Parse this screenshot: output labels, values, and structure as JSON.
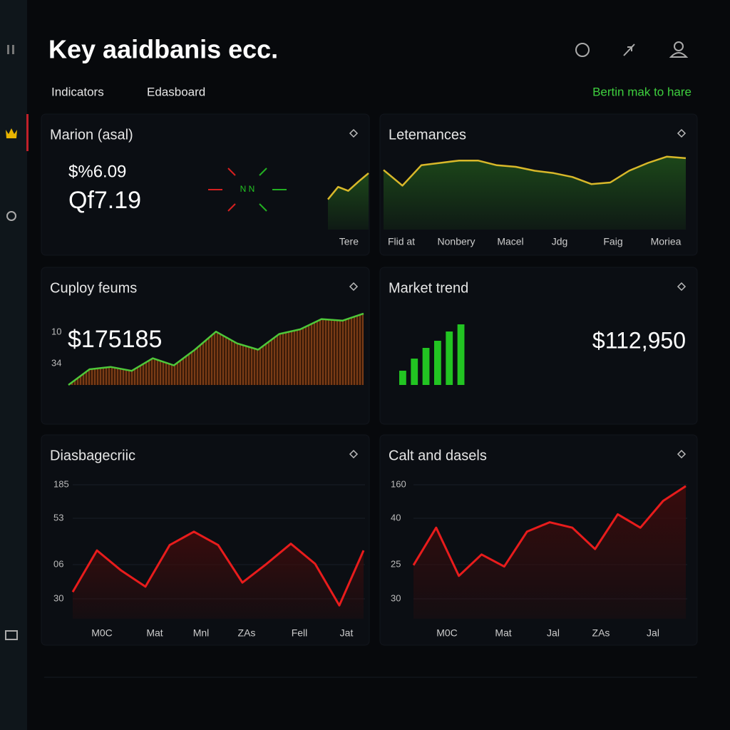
{
  "header": {
    "title": "Key aaidbanis ecc.",
    "tabs": [
      "Indicators",
      "Edasboard"
    ],
    "action": "Bertin mak to hare"
  },
  "panels": [
    {
      "title": "Marion (asal)",
      "figures": [
        "$%6.09",
        "Qf7.19"
      ],
      "indicator": "N N",
      "chart": {
        "type": "area",
        "color": "#d8b82a",
        "fill_color": "#1d4a1a",
        "ylim": [
          0,
          100
        ],
        "values": [
          46,
          65,
          59,
          73,
          86
        ],
        "x_labels": [
          "Tere"
        ]
      }
    },
    {
      "title": "Letemances",
      "chart": {
        "type": "area",
        "color": "#d8b82a",
        "fill_color": "#1d4a1a",
        "ylim": [
          0,
          100
        ],
        "values": [
          76,
          56,
          82,
          85,
          88,
          88,
          82,
          80,
          75,
          72,
          67,
          58,
          60,
          75,
          85,
          93,
          91
        ],
        "x_labels": [
          "Flid at",
          "Nonbery",
          "Macel",
          "Jdg",
          "Faig",
          "Moriea"
        ]
      }
    },
    {
      "title": "Cuploy feums",
      "figures": [
        "$175185"
      ],
      "y_labels": [
        "10",
        "34"
      ],
      "chart": {
        "type": "area",
        "color": "#4ec83a",
        "fill_color": "#6b3414",
        "ylim": [
          0,
          100
        ],
        "values": [
          0,
          20,
          23,
          18,
          34,
          25,
          45,
          68,
          53,
          45,
          65,
          71,
          84,
          82,
          91
        ]
      }
    },
    {
      "title": "Market trend",
      "figures": [
        "$112,950"
      ],
      "chart": {
        "type": "bar",
        "color": "#22c422",
        "ylim": [
          0,
          100
        ],
        "values": [
          20,
          37,
          52,
          62,
          75,
          85
        ]
      }
    },
    {
      "title": "Diasbagecriic",
      "y_labels": [
        "185",
        "53",
        "06",
        "30"
      ],
      "chart": {
        "type": "area",
        "color": "#e81c1c",
        "fill_color": "#3a0c0c",
        "ylim": [
          0,
          100
        ],
        "values": [
          20,
          51,
          36,
          24,
          55,
          65,
          55,
          27,
          41,
          56,
          41,
          10,
          51
        ],
        "x_labels": [
          "M0C",
          "Mat",
          "Mnl",
          "ZAs",
          "Fell",
          "Jat"
        ]
      }
    },
    {
      "title": "Calt and dasels",
      "y_labels": [
        "160",
        "40",
        "25",
        "30"
      ],
      "chart": {
        "type": "area",
        "color": "#e81c1c",
        "fill_color": "#3a0c0c",
        "ylim": [
          0,
          100
        ],
        "values": [
          40,
          68,
          32,
          48,
          39,
          65,
          72,
          68,
          52,
          78,
          68,
          88,
          99
        ],
        "x_labels": [
          "M0C",
          "Mat",
          "Jal",
          "ZAs",
          "Jal"
        ]
      }
    }
  ]
}
